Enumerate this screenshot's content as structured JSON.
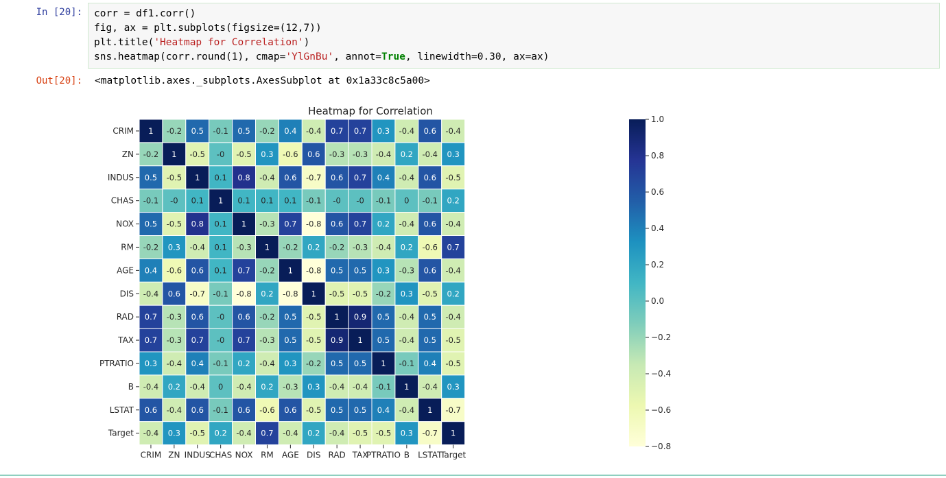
{
  "notebook": {
    "in_prompt": "In [20]:",
    "out_prompt": "Out[20]:",
    "code_lines": [
      [
        {
          "t": "corr = df1.corr()",
          "c": ""
        }
      ],
      [
        {
          "t": "fig, ax = plt.subplots(figsize=(12,7))",
          "c": ""
        }
      ],
      [
        {
          "t": "plt.title(",
          "c": ""
        },
        {
          "t": "'Heatmap for Correlation'",
          "c": "str"
        },
        {
          "t": ")",
          "c": ""
        }
      ],
      [
        {
          "t": "sns.heatmap(corr.round(1), cmap=",
          "c": ""
        },
        {
          "t": "'YlGnBu'",
          "c": "str"
        },
        {
          "t": ", annot=",
          "c": ""
        },
        {
          "t": "True",
          "c": "kw"
        },
        {
          "t": ", linewidth=0.30, ax=ax)",
          "c": ""
        }
      ]
    ],
    "output_text": "<matplotlib.axes._subplots.AxesSubplot at 0x1a33c8c5a00>"
  },
  "chart_data": {
    "type": "heatmap",
    "title": "Heatmap for Correlation",
    "labels": [
      "CRIM",
      "ZN",
      "INDUS",
      "CHAS",
      "NOX",
      "RM",
      "AGE",
      "DIS",
      "RAD",
      "TAX",
      "PTRATIO",
      "B",
      "LSTAT",
      "Target"
    ],
    "cell_labels": [
      [
        "1",
        "-0.2",
        "0.5",
        "-0.1",
        "0.5",
        "-0.2",
        "0.4",
        "-0.4",
        "0.7",
        "0.7",
        "0.3",
        "-0.4",
        "0.6",
        "-0.4"
      ],
      [
        "-0.2",
        "1",
        "-0.5",
        "-0",
        "-0.5",
        "0.3",
        "-0.6",
        "0.6",
        "-0.3",
        "-0.3",
        "-0.4",
        "0.2",
        "-0.4",
        "0.3"
      ],
      [
        "0.5",
        "-0.5",
        "1",
        "0.1",
        "0.8",
        "-0.4",
        "0.6",
        "-0.7",
        "0.6",
        "0.7",
        "0.4",
        "-0.4",
        "0.6",
        "-0.5"
      ],
      [
        "-0.1",
        "-0",
        "0.1",
        "1",
        "0.1",
        "0.1",
        "0.1",
        "-0.1",
        "-0",
        "-0",
        "-0.1",
        "0",
        "-0.1",
        "0.2"
      ],
      [
        "0.5",
        "-0.5",
        "0.8",
        "0.1",
        "1",
        "-0.3",
        "0.7",
        "-0.8",
        "0.6",
        "0.7",
        "0.2",
        "-0.4",
        "0.6",
        "-0.4"
      ],
      [
        "-0.2",
        "0.3",
        "-0.4",
        "0.1",
        "-0.3",
        "1",
        "-0.2",
        "0.2",
        "-0.2",
        "-0.3",
        "-0.4",
        "0.2",
        "-0.6",
        "0.7"
      ],
      [
        "0.4",
        "-0.6",
        "0.6",
        "0.1",
        "0.7",
        "-0.2",
        "1",
        "-0.8",
        "0.5",
        "0.5",
        "0.3",
        "-0.3",
        "0.6",
        "-0.4"
      ],
      [
        "-0.4",
        "0.6",
        "-0.7",
        "-0.1",
        "-0.8",
        "0.2",
        "-0.8",
        "1",
        "-0.5",
        "-0.5",
        "-0.2",
        "0.3",
        "-0.5",
        "0.2"
      ],
      [
        "0.7",
        "-0.3",
        "0.6",
        "-0",
        "0.6",
        "-0.2",
        "0.5",
        "-0.5",
        "1",
        "0.9",
        "0.5",
        "-0.4",
        "0.5",
        "-0.4"
      ],
      [
        "0.7",
        "-0.3",
        "0.7",
        "-0",
        "0.7",
        "-0.3",
        "0.5",
        "-0.5",
        "0.9",
        "1",
        "0.5",
        "-0.4",
        "0.5",
        "-0.5"
      ],
      [
        "0.3",
        "-0.4",
        "0.4",
        "-0.1",
        "0.2",
        "-0.4",
        "0.3",
        "-0.2",
        "0.5",
        "0.5",
        "1",
        "-0.1",
        "0.4",
        "-0.5"
      ],
      [
        "-0.4",
        "0.2",
        "-0.4",
        "0",
        "-0.4",
        "0.2",
        "-0.3",
        "0.3",
        "-0.4",
        "-0.4",
        "-0.1",
        "1",
        "-0.4",
        "0.3"
      ],
      [
        "0.6",
        "-0.4",
        "0.6",
        "-0.1",
        "0.6",
        "-0.6",
        "0.6",
        "-0.5",
        "0.5",
        "0.5",
        "0.4",
        "-0.4",
        "1",
        "-0.7"
      ],
      [
        "-0.4",
        "0.3",
        "-0.5",
        "0.2",
        "-0.4",
        "0.7",
        "-0.4",
        "0.2",
        "-0.4",
        "-0.5",
        "-0.5",
        "0.3",
        "-0.7",
        "1"
      ]
    ],
    "colormap": "YlGnBu",
    "vmin": -0.8,
    "vmax": 1.0,
    "colorbar_ticks": [
      "1.0",
      "0.8",
      "0.6",
      "0.4",
      "0.2",
      "0.0",
      "−0.2",
      "−0.4",
      "−0.6",
      "−0.8"
    ],
    "colorbar_tick_values": [
      1.0,
      0.8,
      0.6,
      0.4,
      0.2,
      0.0,
      -0.2,
      -0.4,
      -0.6,
      -0.8
    ],
    "colormap_stops": [
      "#ffffd9",
      "#edf8b1",
      "#c7e9b4",
      "#7fcdbb",
      "#41b6c4",
      "#1d91c0",
      "#225ea8",
      "#253494",
      "#081d58"
    ]
  }
}
